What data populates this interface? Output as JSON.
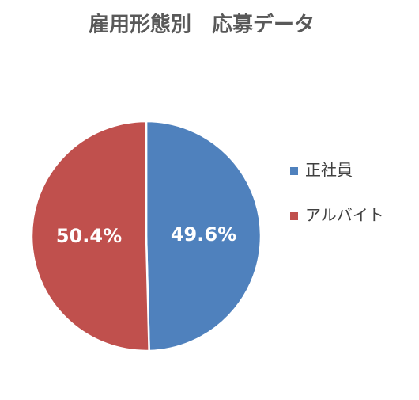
{
  "chart_data": {
    "type": "pie",
    "title": "雇用形態別　応募データ",
    "categories": [
      "正社員",
      "アルバイト"
    ],
    "values": [
      49.6,
      50.4
    ],
    "value_labels": [
      "49.6%",
      "50.4%"
    ],
    "colors": [
      "#4f81bd",
      "#c0504d"
    ],
    "legend": "right"
  }
}
